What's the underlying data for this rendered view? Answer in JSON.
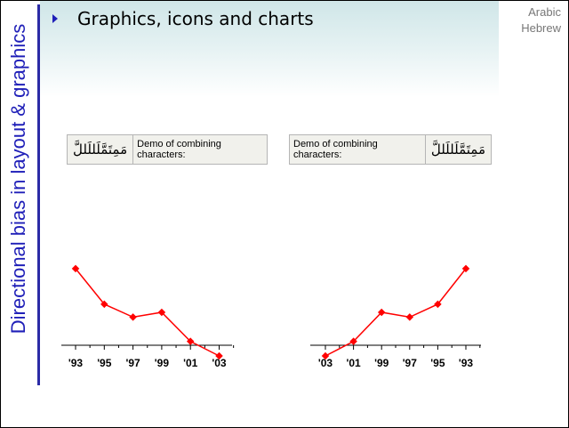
{
  "slide": {
    "side_title": "Directional bias in layout & graphics",
    "heading": "Graphics, icons and charts",
    "languages": [
      "Arabic",
      "Hebrew"
    ]
  },
  "demos": [
    {
      "arabic_text": "مَمِتَمَّلَللَللَّ",
      "label": "Demo of combining characters:"
    },
    {
      "arabic_text": "مَمِتَمَّلَللَللَّ",
      "label": "Demo of combining characters:"
    }
  ],
  "colors": {
    "title_blue": "#1f1fb8",
    "series_red": "#ff0000"
  },
  "chart_data": [
    {
      "type": "line",
      "categories": [
        "'93",
        "'95",
        "'97",
        "'99",
        "'01",
        "'03"
      ],
      "series": [
        {
          "values": [
            5.4,
            3.2,
            2.4,
            2.7,
            0.9,
            0.0
          ]
        }
      ],
      "ylim": [
        0,
        6
      ],
      "grid": false
    },
    {
      "type": "line",
      "categories": [
        "'03",
        "'01",
        "'99",
        "'97",
        "'95",
        "'93"
      ],
      "series": [
        {
          "values": [
            0.0,
            0.9,
            2.7,
            2.4,
            3.2,
            5.4
          ]
        }
      ],
      "ylim": [
        0,
        6
      ],
      "grid": false
    }
  ]
}
